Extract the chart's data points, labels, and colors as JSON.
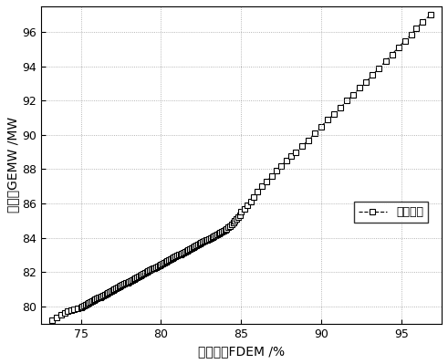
{
  "title": "",
  "xlabel": "总阀位值FDEM /%",
  "ylabel": "功率值GEMW /MW",
  "legend_label": "优化结果",
  "xlim": [
    72.5,
    97.5
  ],
  "ylim": [
    79.0,
    97.5
  ],
  "xticks": [
    75,
    80,
    85,
    90,
    95
  ],
  "yticks": [
    80,
    82,
    84,
    86,
    88,
    90,
    92,
    94,
    96
  ],
  "background_color": "#ffffff",
  "line_color": "#000000",
  "marker": "s",
  "linestyle": "--",
  "grid_color": "#888888",
  "grid_linestyle": ":",
  "data_x": [
    73.2,
    73.5,
    73.8,
    74.0,
    74.2,
    74.4,
    74.6,
    74.8,
    75.0,
    75.1,
    75.2,
    75.3,
    75.4,
    75.5,
    75.6,
    75.7,
    75.8,
    75.9,
    76.0,
    76.1,
    76.2,
    76.3,
    76.4,
    76.5,
    76.6,
    76.7,
    76.8,
    76.9,
    77.0,
    77.1,
    77.2,
    77.3,
    77.4,
    77.5,
    77.6,
    77.7,
    77.8,
    77.9,
    78.0,
    78.1,
    78.2,
    78.3,
    78.4,
    78.5,
    78.6,
    78.7,
    78.8,
    78.9,
    79.0,
    79.1,
    79.2,
    79.3,
    79.4,
    79.5,
    79.6,
    79.7,
    79.8,
    79.9,
    80.0,
    80.1,
    80.2,
    80.3,
    80.4,
    80.5,
    80.6,
    80.7,
    80.8,
    80.9,
    81.0,
    81.1,
    81.2,
    81.3,
    81.4,
    81.5,
    81.6,
    81.7,
    81.8,
    81.9,
    82.0,
    82.1,
    82.2,
    82.3,
    82.4,
    82.5,
    82.6,
    82.7,
    82.8,
    82.9,
    83.0,
    83.1,
    83.2,
    83.3,
    83.4,
    83.5,
    83.6,
    83.7,
    83.8,
    83.9,
    84.0,
    84.1,
    84.2,
    84.3,
    84.4,
    84.5,
    84.6,
    84.7,
    84.8,
    84.9,
    85.0,
    85.2,
    85.4,
    85.6,
    85.8,
    86.0,
    86.3,
    86.6,
    86.9,
    87.2,
    87.5,
    87.8,
    88.1,
    88.4,
    88.8,
    89.2,
    89.6,
    90.0,
    90.4,
    90.8,
    91.2,
    91.6,
    92.0,
    92.4,
    92.8,
    93.2,
    93.6,
    94.0,
    94.4,
    94.8,
    95.2,
    95.6,
    95.9,
    96.3,
    96.8
  ],
  "data_y": [
    79.2,
    79.35,
    79.5,
    79.6,
    79.7,
    79.8,
    79.85,
    79.9,
    79.95,
    80.0,
    80.05,
    80.1,
    80.15,
    80.2,
    80.25,
    80.3,
    80.35,
    80.4,
    80.45,
    80.5,
    80.55,
    80.6,
    80.65,
    80.7,
    80.75,
    80.8,
    80.85,
    80.9,
    80.95,
    81.0,
    81.05,
    81.1,
    81.15,
    81.2,
    81.25,
    81.3,
    81.35,
    81.4,
    81.45,
    81.5,
    81.55,
    81.6,
    81.65,
    81.7,
    81.75,
    81.8,
    81.85,
    81.9,
    81.95,
    82.0,
    82.05,
    82.1,
    82.15,
    82.2,
    82.25,
    82.3,
    82.35,
    82.4,
    82.45,
    82.5,
    82.55,
    82.6,
    82.65,
    82.7,
    82.75,
    82.8,
    82.85,
    82.9,
    82.95,
    83.0,
    83.05,
    83.1,
    83.15,
    83.2,
    83.25,
    83.3,
    83.35,
    83.4,
    83.45,
    83.5,
    83.55,
    83.6,
    83.65,
    83.7,
    83.75,
    83.8,
    83.85,
    83.9,
    83.95,
    84.0,
    84.05,
    84.1,
    84.15,
    84.2,
    84.25,
    84.3,
    84.35,
    84.4,
    84.45,
    84.5,
    84.6,
    84.7,
    84.8,
    84.9,
    85.0,
    85.1,
    85.2,
    85.3,
    85.5,
    85.7,
    85.9,
    86.1,
    86.4,
    86.7,
    87.0,
    87.3,
    87.6,
    87.9,
    88.2,
    88.5,
    88.75,
    89.0,
    89.35,
    89.7,
    90.1,
    90.5,
    90.9,
    91.2,
    91.6,
    92.0,
    92.35,
    92.75,
    93.1,
    93.5,
    93.9,
    94.3,
    94.7,
    95.1,
    95.5,
    95.85,
    96.2,
    96.6,
    97.0
  ]
}
